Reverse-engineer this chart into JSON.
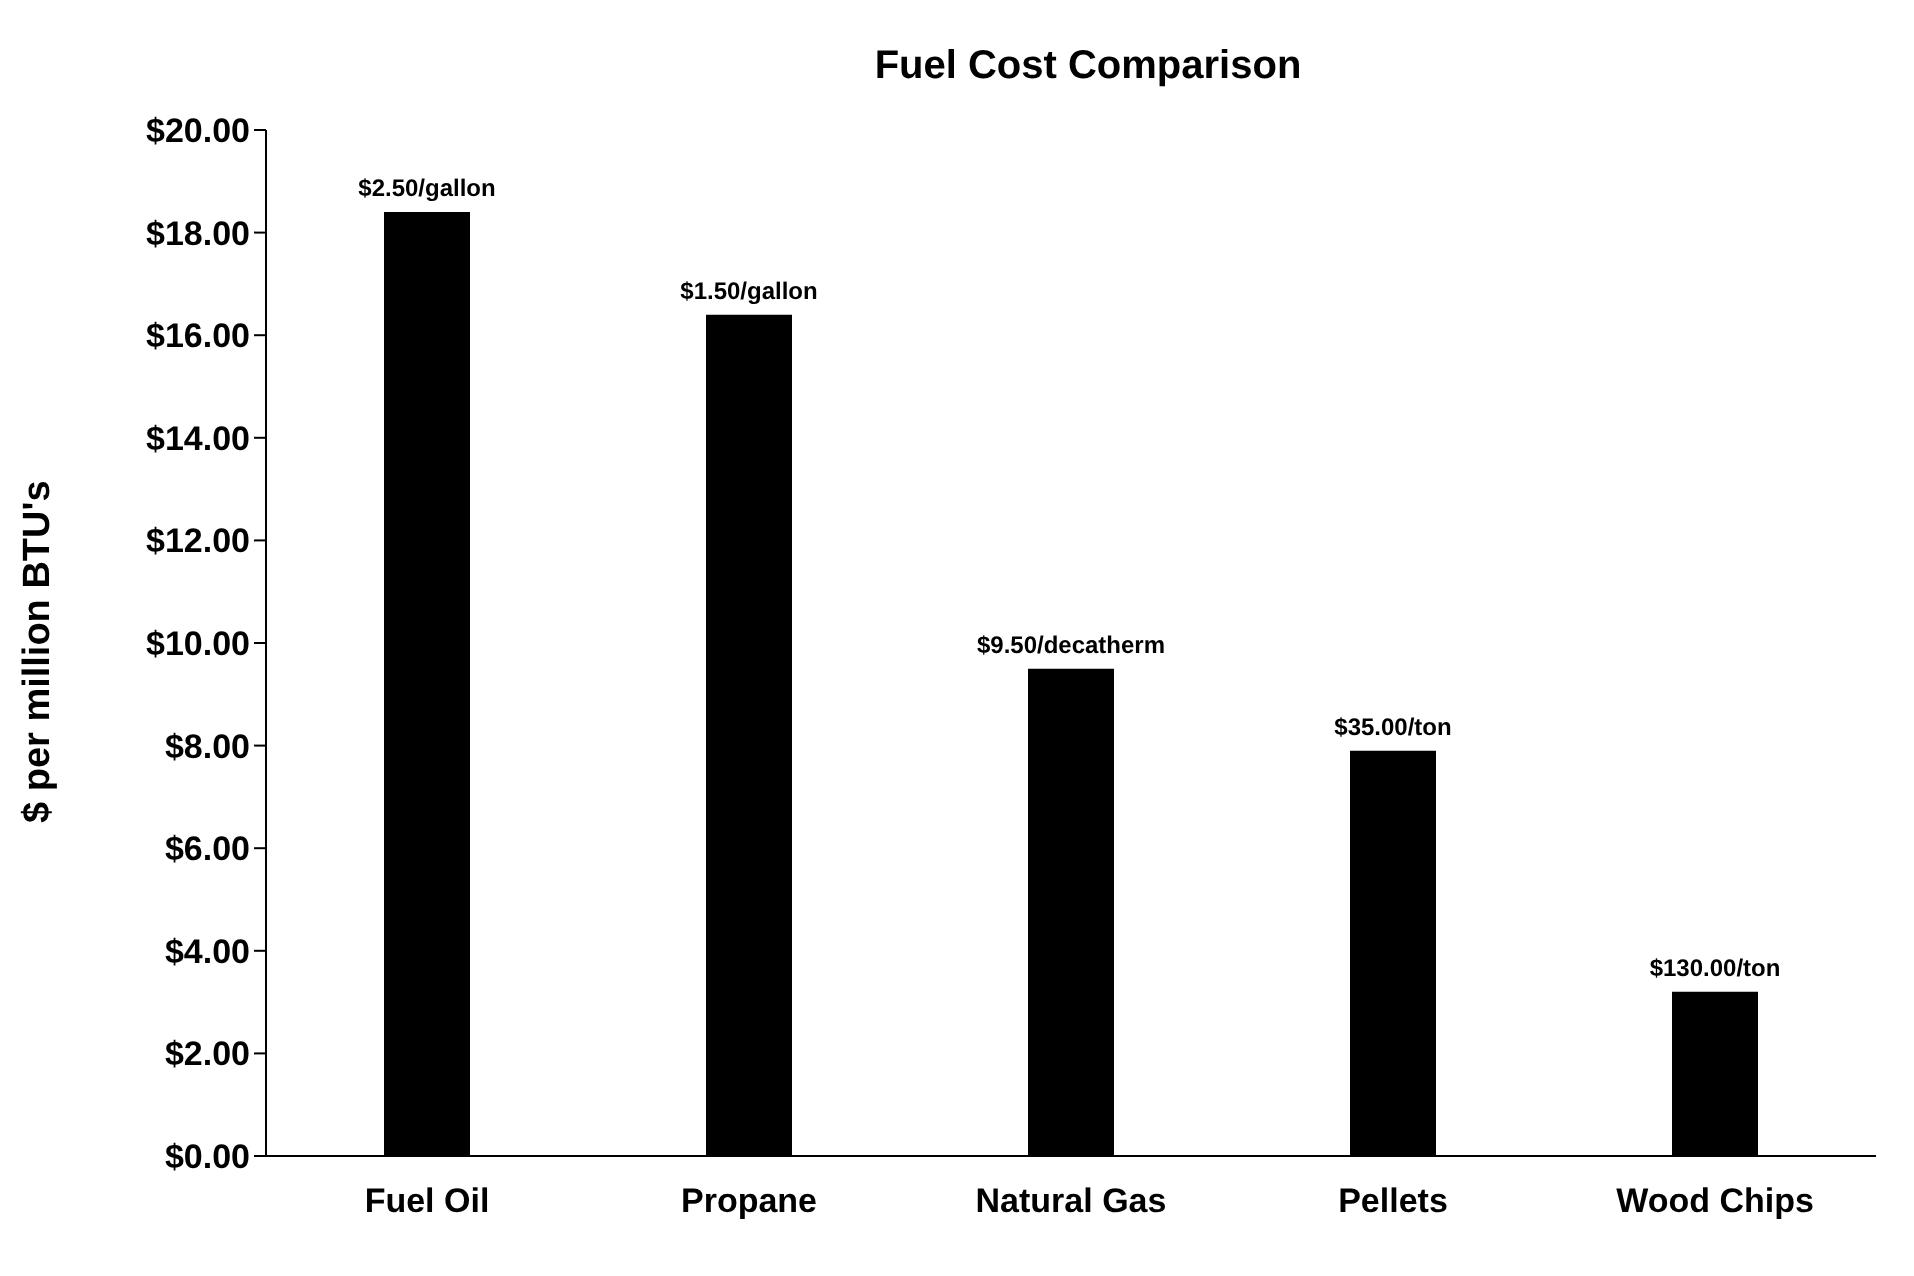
{
  "chart_data": {
    "type": "bar",
    "title": "Fuel Cost Comparison",
    "ylabel": "$ per million BTU's",
    "categories": [
      "Fuel Oil",
      "Propane",
      "Natural Gas",
      "Pellets",
      "Wood Chips"
    ],
    "values": [
      18.4,
      16.4,
      9.5,
      7.9,
      3.2
    ],
    "color": "#000000",
    "annotations": [
      {
        "text": "$2.50/gallon",
        "x": "Fuel Oil",
        "y": 18.4
      },
      {
        "text": "$1.50/gallon",
        "x": "Propane",
        "y": 16.4
      },
      {
        "text": "$9.50/decatherm",
        "x": "Natural Gas",
        "y": 9.5
      },
      {
        "text": "$35.00/ton",
        "x": "Pellets",
        "y": 7.9
      },
      {
        "text": "$130.00/ton",
        "x": "Wood Chips",
        "y": 3.2
      }
    ],
    "ylim": [
      0,
      20
    ],
    "yticks": [
      {
        "value": 0,
        "label": "$0.00"
      },
      {
        "value": 2,
        "label": "$2.00"
      },
      {
        "value": 4,
        "label": "$4.00"
      },
      {
        "value": 6,
        "label": "$6.00"
      },
      {
        "value": 8,
        "label": "$8.00"
      },
      {
        "value": 10,
        "label": "$10.00"
      },
      {
        "value": 12,
        "label": "$12.00"
      },
      {
        "value": 14,
        "label": "$14.00"
      },
      {
        "value": 16,
        "label": "$16.00"
      },
      {
        "value": 18,
        "label": "$18.00"
      },
      {
        "value": 20,
        "label": "$20.00"
      }
    ],
    "grid": false,
    "legend": false
  }
}
